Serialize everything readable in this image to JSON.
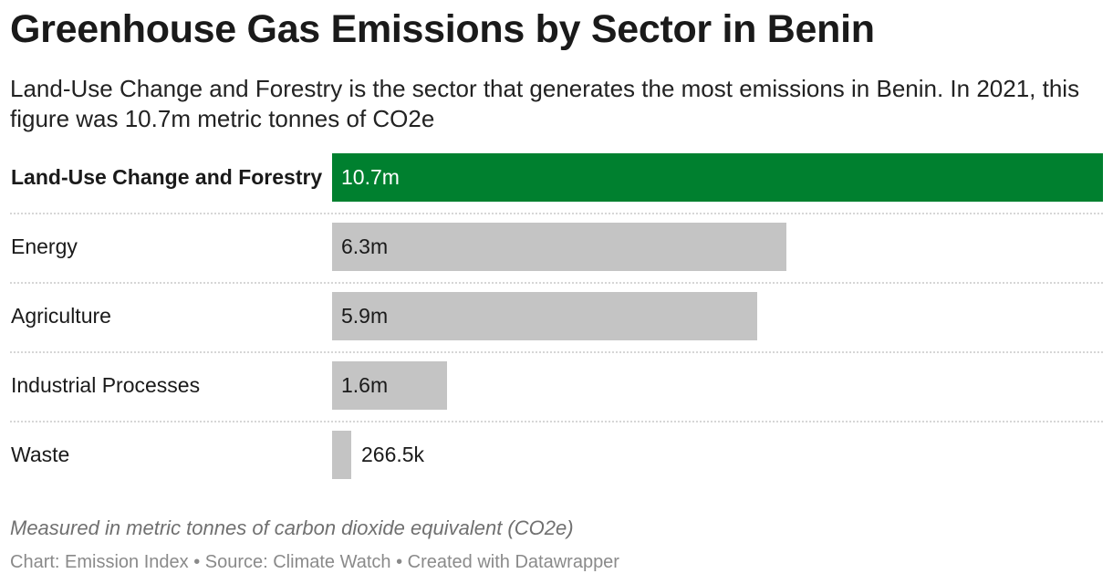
{
  "title": "Greenhouse Gas Emissions by Sector in Benin",
  "subtitle": "Land-Use Change and Forestry is the sector that generates the most emissions in Benin. In 2021, this figure was 10.7m metric tonnes of CO2e",
  "note": "Measured in metric tonnes of carbon dioxide equivalent (CO2e)",
  "footer": "Chart: Emission Index • Source: Climate Watch • Created with Datawrapper",
  "colors": {
    "highlight": "#00802f",
    "default": "#c4c4c4",
    "label_on_highlight": "#ffffff",
    "label_default": "#1a1a1a"
  },
  "chart_data": {
    "type": "bar",
    "orientation": "horizontal",
    "categories": [
      "Land-Use Change and Forestry",
      "Energy",
      "Agriculture",
      "Industrial Processes",
      "Waste"
    ],
    "values": [
      10700000,
      6300000,
      5900000,
      1600000,
      266500
    ],
    "value_labels": [
      "10.7m",
      "6.3m",
      "5.9m",
      "1.6m",
      "266.5k"
    ],
    "highlighted": "Land-Use Change and Forestry",
    "xlim": [
      0,
      10700000
    ],
    "grid": false,
    "legend": "none"
  }
}
